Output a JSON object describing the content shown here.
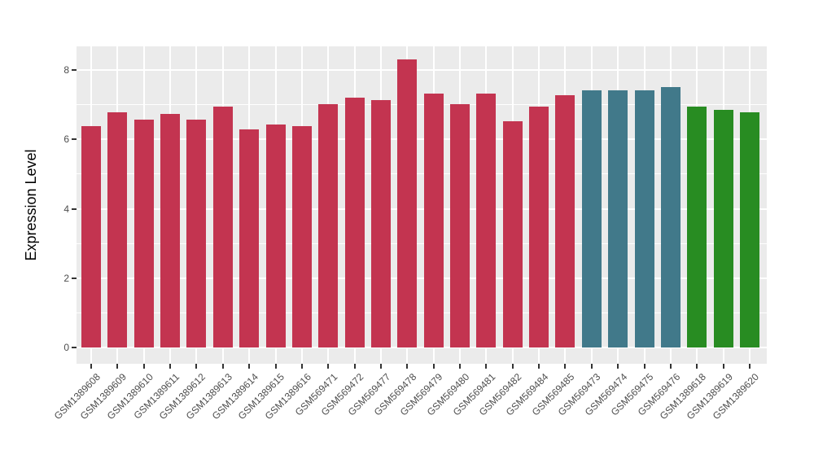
{
  "figure": {
    "background": "#FFFFFF",
    "panel_background": "#EBEBEB",
    "gridline_color": "#FFFFFF",
    "axis_text_color": "#4D4D4D",
    "tick_mark_color": "#333333"
  },
  "chart_data": {
    "type": "bar",
    "title": "",
    "xlabel": "",
    "ylabel": "Expression Level",
    "ylim": [
      0,
      8.68
    ],
    "yticks": [
      0,
      2,
      4,
      6,
      8
    ],
    "yminorticks": [
      1,
      3,
      5,
      7
    ],
    "grid": "major+minor, white on gray panel",
    "legend_position": "none",
    "categories": [
      "GSM1389608",
      "GSM1389609",
      "GSM1389610",
      "GSM1389611",
      "GSM1389612",
      "GSM1389613",
      "GSM1389614",
      "GSM1389615",
      "GSM1389616",
      "GSM569471",
      "GSM569472",
      "GSM569477",
      "GSM569478",
      "GSM569479",
      "GSM569480",
      "GSM569481",
      "GSM569482",
      "GSM569484",
      "GSM569485",
      "GSM569473",
      "GSM569474",
      "GSM569475",
      "GSM569476",
      "GSM1389618",
      "GSM1389619",
      "GSM1389620"
    ],
    "values": [
      6.37,
      6.79,
      6.58,
      6.74,
      6.56,
      6.95,
      6.28,
      6.42,
      6.37,
      7.01,
      7.21,
      7.14,
      8.3,
      7.32,
      7.01,
      7.32,
      6.52,
      6.95,
      7.27,
      7.41,
      7.41,
      7.42,
      7.5,
      6.94,
      6.86,
      6.79
    ],
    "groups": [
      "crimson",
      "crimson",
      "crimson",
      "crimson",
      "crimson",
      "crimson",
      "crimson",
      "crimson",
      "crimson",
      "crimson",
      "crimson",
      "crimson",
      "crimson",
      "crimson",
      "crimson",
      "crimson",
      "crimson",
      "crimson",
      "crimson",
      "teal",
      "teal",
      "teal",
      "teal",
      "green",
      "green",
      "green"
    ],
    "palette": {
      "crimson": "#C33450",
      "teal": "#41798A",
      "green": "#288C22"
    }
  }
}
